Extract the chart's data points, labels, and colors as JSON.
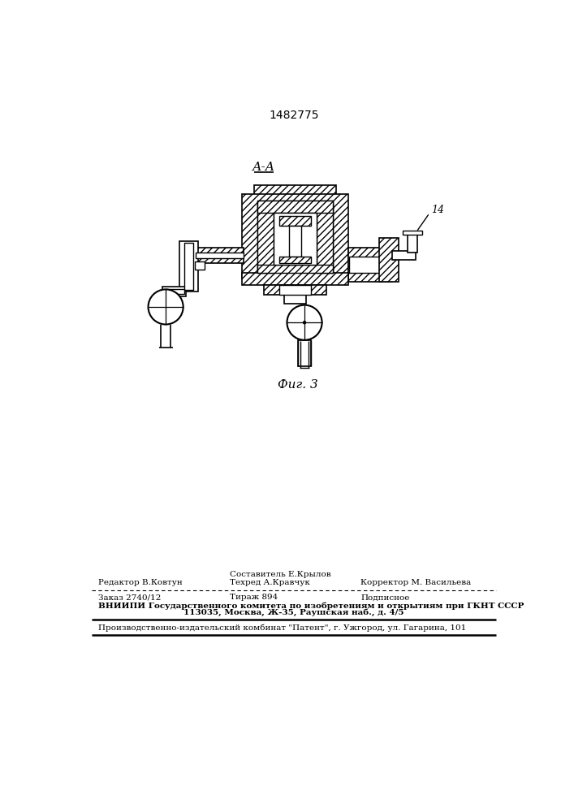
{
  "patent_number": "1482775",
  "figure_label": "Фиг. 3",
  "section_label": "А-А",
  "label_14": "14",
  "background_color": "#ffffff",
  "footer": {
    "line1_col1": "Редактор В.Ковтун",
    "line1_col2_top": "Составитель Е.Крылов",
    "line1_col2_bot": "Техред А.Кравчук",
    "line1_col3": "Корректор М. Васильева",
    "line2_col1": "Заказ 2740/12",
    "line2_col2": "Тираж 894",
    "line2_col3": "Подписное",
    "line3": "ВНИИПИ Государственного комитета по изобретениям и открытиям при ГКНТ СССР",
    "line4": "113035, Москва, Ж-35, Раушская наб., д. 4/5",
    "line5": "Производственно-издательский комбинат \"Патент\", г. Ужгород, ул. Гагарина, 101"
  },
  "page_width": 7.07,
  "page_height": 10.0
}
